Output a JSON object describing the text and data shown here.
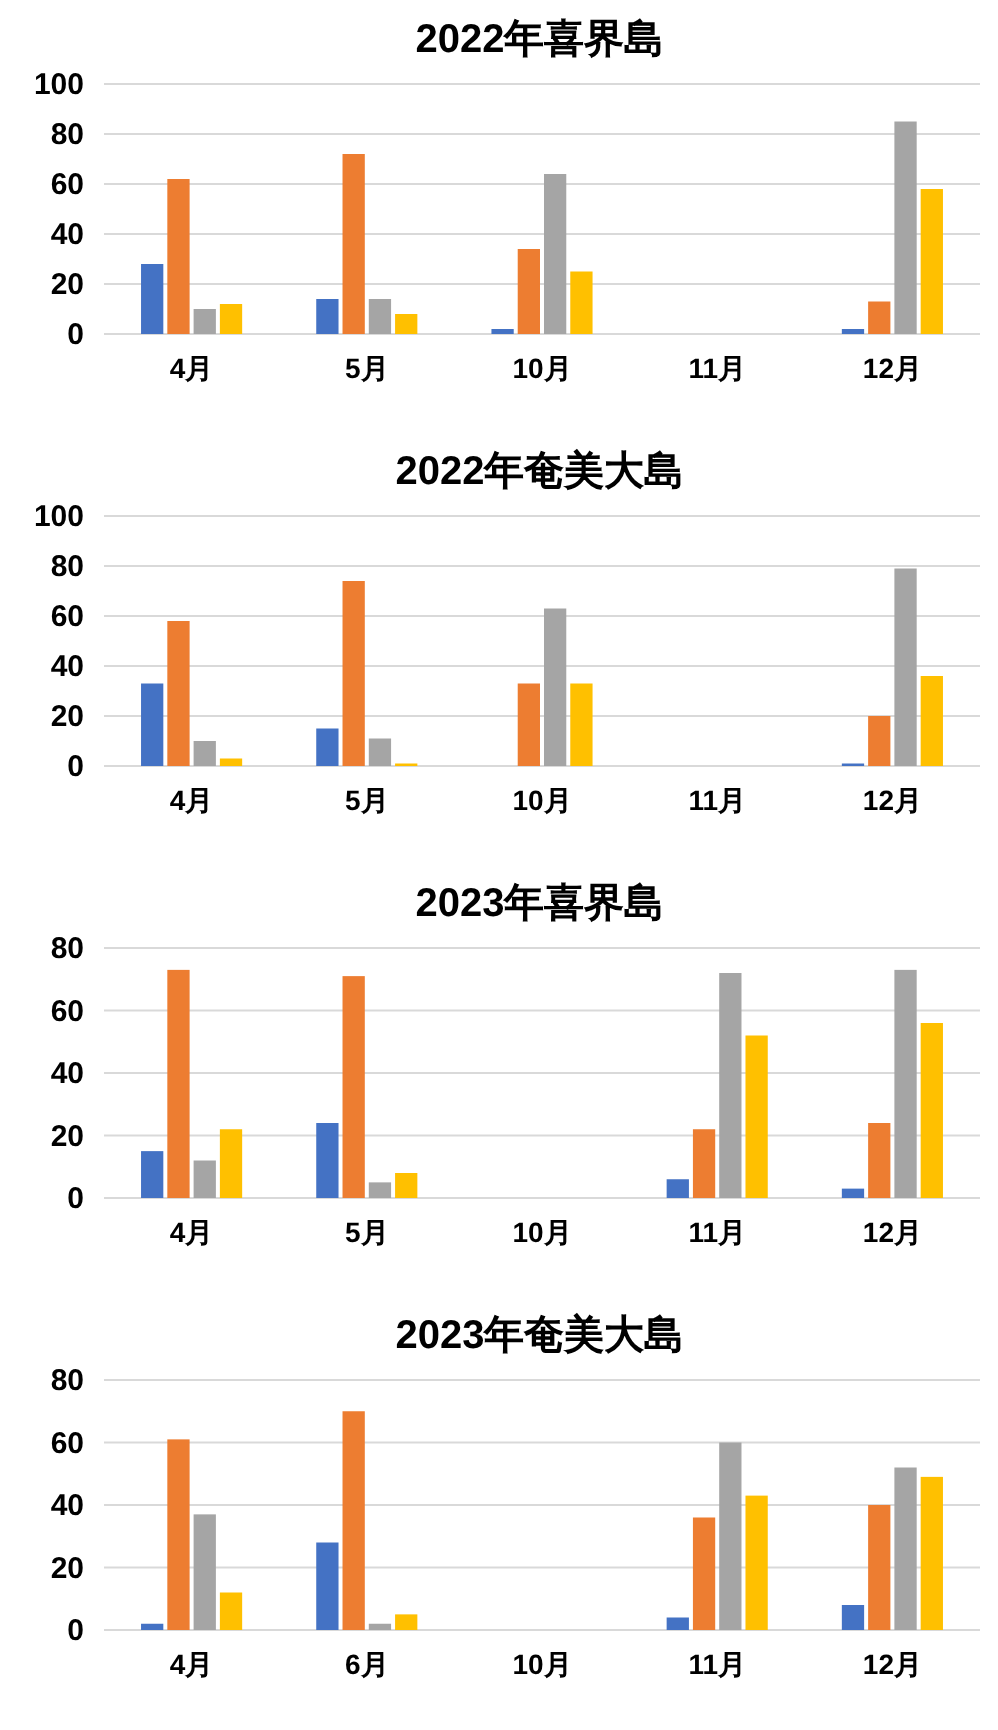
{
  "chart_data": [
    {
      "type": "bar",
      "title": "2022年喜界島",
      "categories": [
        "4月",
        "5月",
        "10月",
        "11月",
        "12月"
      ],
      "ylim": [
        0,
        100
      ],
      "yticks": [
        0,
        20,
        40,
        60,
        80,
        100
      ],
      "grid": "y",
      "series": [
        {
          "color": "#4472c4",
          "values": [
            28,
            14,
            2,
            null,
            2
          ]
        },
        {
          "color": "#ed7d31",
          "values": [
            62,
            72,
            34,
            null,
            13
          ]
        },
        {
          "color": "#a5a5a5",
          "values": [
            10,
            14,
            64,
            null,
            85
          ]
        },
        {
          "color": "#ffc000",
          "values": [
            12,
            8,
            25,
            null,
            58
          ]
        }
      ]
    },
    {
      "type": "bar",
      "title": "2022年奄美大島",
      "categories": [
        "4月",
        "5月",
        "10月",
        "11月",
        "12月"
      ],
      "ylim": [
        0,
        100
      ],
      "yticks": [
        0,
        20,
        40,
        60,
        80,
        100
      ],
      "grid": "y",
      "series": [
        {
          "color": "#4472c4",
          "values": [
            33,
            15,
            null,
            null,
            1
          ]
        },
        {
          "color": "#ed7d31",
          "values": [
            58,
            74,
            33,
            null,
            20
          ]
        },
        {
          "color": "#a5a5a5",
          "values": [
            10,
            11,
            63,
            null,
            79
          ]
        },
        {
          "color": "#ffc000",
          "values": [
            3,
            1,
            33,
            null,
            36
          ]
        }
      ]
    },
    {
      "type": "bar",
      "title": "2023年喜界島",
      "categories": [
        "4月",
        "5月",
        "10月",
        "11月",
        "12月"
      ],
      "ylim": [
        0,
        80
      ],
      "yticks": [
        0,
        20,
        40,
        60,
        80
      ],
      "grid": "y",
      "series": [
        {
          "color": "#4472c4",
          "values": [
            15,
            24,
            null,
            6,
            3
          ]
        },
        {
          "color": "#ed7d31",
          "values": [
            73,
            71,
            null,
            22,
            24
          ]
        },
        {
          "color": "#a5a5a5",
          "values": [
            12,
            5,
            null,
            72,
            73
          ]
        },
        {
          "color": "#ffc000",
          "values": [
            22,
            8,
            null,
            52,
            56
          ]
        }
      ]
    },
    {
      "type": "bar",
      "title": "2023年奄美大島",
      "categories": [
        "4月",
        "6月",
        "10月",
        "11月",
        "12月"
      ],
      "ylim": [
        0,
        80
      ],
      "yticks": [
        0,
        20,
        40,
        60,
        80
      ],
      "grid": "y",
      "series": [
        {
          "color": "#4472c4",
          "values": [
            2,
            28,
            null,
            4,
            8
          ]
        },
        {
          "color": "#ed7d31",
          "values": [
            61,
            70,
            null,
            36,
            40
          ]
        },
        {
          "color": "#a5a5a5",
          "values": [
            37,
            2,
            null,
            60,
            52
          ]
        },
        {
          "color": "#ffc000",
          "values": [
            12,
            5,
            null,
            43,
            49
          ]
        }
      ]
    }
  ]
}
